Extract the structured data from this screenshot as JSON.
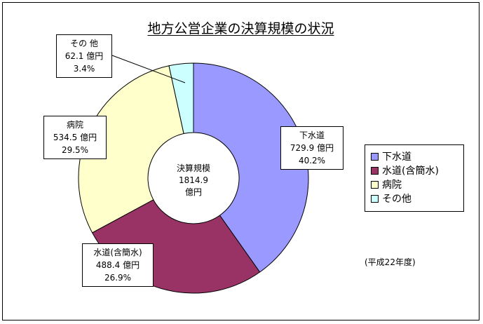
{
  "chart_data": {
    "type": "pie",
    "variant": "donut",
    "title": "地方公営企業の決算規模の状況",
    "center_label": [
      "決算規模",
      "1814.9",
      "億円"
    ],
    "total": 1814.9,
    "unit": "億円",
    "categories": [
      "下水道",
      "水道(含簡水)",
      "病院",
      "その他"
    ],
    "values": [
      729.9,
      488.4,
      534.5,
      62.1
    ],
    "percents": [
      40.2,
      26.9,
      29.5,
      3.4
    ],
    "colors": [
      "#9999ff",
      "#993366",
      "#ffffcc",
      "#ccffff"
    ],
    "slice_labels": [
      {
        "name": "下水道",
        "value": "729.9 億円",
        "percent": "40.2%"
      },
      {
        "name": "水道(含簡水)",
        "value": "488.4 億円",
        "percent": "26.9%"
      },
      {
        "name": "病院",
        "value": "534.5 億円",
        "percent": "29.5%"
      },
      {
        "name": "その 他",
        "value": "62.1 億円",
        "percent": "3.4%"
      }
    ],
    "legend": {
      "placement": "right",
      "entries": [
        "下水道",
        "水道(含簡水)",
        "病院",
        "その他"
      ]
    },
    "note": "(平成22年度)"
  }
}
